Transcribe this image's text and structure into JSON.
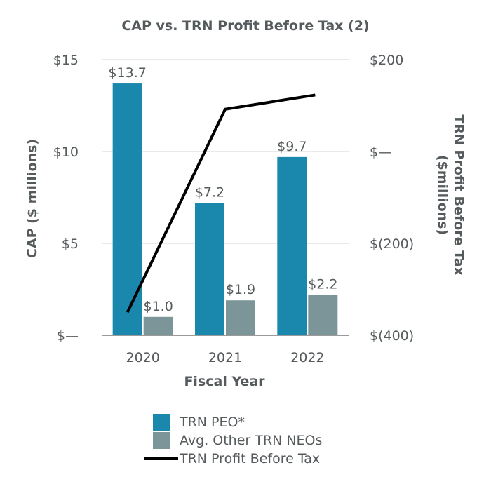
{
  "title": "CAP vs. TRN Profit Before Tax (2)",
  "chart_data": {
    "type": "bar",
    "title": "CAP vs. TRN Profit Before Tax (2)",
    "xlabel": "Fiscal Year",
    "ylabel": "CAP ($ millions)",
    "y2label_line1": "TRN Profit Before Tax",
    "y2label_line2": "($millions)",
    "categories": [
      "2020",
      "2021",
      "2022"
    ],
    "ylim": [
      0,
      15
    ],
    "yticks": [
      0,
      5,
      10,
      15
    ],
    "ytick_labels": [
      "$—",
      "$5",
      "$10",
      "$15"
    ],
    "y2lim": [
      -400,
      200
    ],
    "y2ticks": [
      -400,
      -200,
      0,
      200
    ],
    "y2tick_labels": [
      "$(400)",
      "$(200)",
      "$—",
      "$200"
    ],
    "grid": true,
    "series": [
      {
        "name": "TRN PEO*",
        "kind": "bar",
        "color": "#1a87ad",
        "values": [
          13.7,
          7.2,
          9.7
        ],
        "labels": [
          "$13.7",
          "$7.2",
          "$9.7"
        ]
      },
      {
        "name": "Avg. Other TRN NEOs",
        "kind": "bar",
        "color": "#7b9599",
        "values": [
          1.0,
          1.9,
          2.2
        ],
        "labels": [
          "$1.0",
          "$1.9",
          "$2.2"
        ]
      },
      {
        "name": "TRN Profit Before Tax",
        "kind": "line",
        "axis": "secondary",
        "color": "#000000",
        "values": [
          -350,
          92,
          123
        ]
      }
    ]
  },
  "legend": [
    {
      "label": "TRN PEO*",
      "color": "#1a87ad"
    },
    {
      "label": "Avg. Other TRN NEOs",
      "color": "#7b9599"
    },
    {
      "label": "TRN Profit Before Tax",
      "color": "#000000"
    }
  ]
}
